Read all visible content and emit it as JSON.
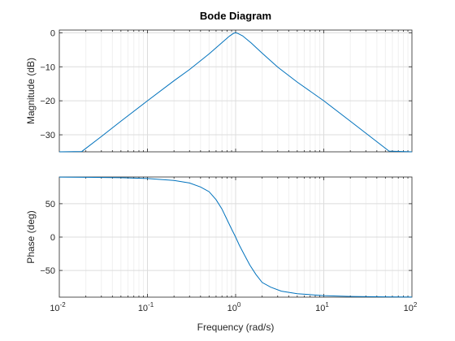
{
  "chart_data": {
    "type": "line",
    "title": "Bode Diagram",
    "xlabel": "Frequency (rad/s)",
    "x_scale": "log",
    "xlim": [
      0.01,
      100
    ],
    "x_ticks": [
      {
        "base": "10",
        "exp": "-2",
        "value": 0.01
      },
      {
        "base": "10",
        "exp": "-1",
        "value": 0.1
      },
      {
        "base": "10",
        "exp": "0",
        "value": 1
      },
      {
        "base": "10",
        "exp": "1",
        "value": 10
      },
      {
        "base": "10",
        "exp": "2",
        "value": 100
      }
    ],
    "grid": true,
    "color": "#0072bd",
    "panels": [
      {
        "name": "magnitude",
        "ylabel": "Magnitude (dB)",
        "ylim": [
          -35,
          0.8
        ],
        "y_ticks": [
          0,
          -10,
          -20,
          -30
        ],
        "y_tick_labels": [
          "0",
          "−10",
          "−20",
          "−30"
        ],
        "points": [
          {
            "x": 0.01,
            "y": -40.0
          },
          {
            "x": 0.018,
            "y": -34.9
          },
          {
            "x": 0.03,
            "y": -30.5
          },
          {
            "x": 0.05,
            "y": -26.0
          },
          {
            "x": 0.1,
            "y": -20.0
          },
          {
            "x": 0.2,
            "y": -14.1
          },
          {
            "x": 0.3,
            "y": -10.8
          },
          {
            "x": 0.5,
            "y": -6.2
          },
          {
            "x": 0.7,
            "y": -2.9
          },
          {
            "x": 0.85,
            "y": -1.0
          },
          {
            "x": 0.95,
            "y": -0.15
          },
          {
            "x": 1.0,
            "y": 0.0
          },
          {
            "x": 1.05,
            "y": -0.15
          },
          {
            "x": 1.2,
            "y": -0.9
          },
          {
            "x": 1.5,
            "y": -3.0
          },
          {
            "x": 2,
            "y": -6.0
          },
          {
            "x": 3,
            "y": -10.1
          },
          {
            "x": 5,
            "y": -14.5
          },
          {
            "x": 10,
            "y": -20.0
          },
          {
            "x": 20,
            "y": -26.0
          },
          {
            "x": 55,
            "y": -34.8
          },
          {
            "x": 100,
            "y": -40.0
          }
        ]
      },
      {
        "name": "phase",
        "ylabel": "Phase (deg)",
        "ylim": [
          -90,
          90
        ],
        "y_ticks": [
          50,
          0,
          -50
        ],
        "y_tick_labels": [
          "50",
          "0",
          "−50"
        ],
        "points": [
          {
            "x": 0.01,
            "y": 89.9
          },
          {
            "x": 0.02,
            "y": 89.5
          },
          {
            "x": 0.05,
            "y": 88.9
          },
          {
            "x": 0.1,
            "y": 87.7
          },
          {
            "x": 0.2,
            "y": 84.8
          },
          {
            "x": 0.3,
            "y": 81.0
          },
          {
            "x": 0.4,
            "y": 75.0
          },
          {
            "x": 0.5,
            "y": 68.0
          },
          {
            "x": 0.6,
            "y": 56.0
          },
          {
            "x": 0.7,
            "y": 42.0
          },
          {
            "x": 0.8,
            "y": 26.0
          },
          {
            "x": 0.9,
            "y": 12.0
          },
          {
            "x": 1.0,
            "y": 0.0
          },
          {
            "x": 1.1,
            "y": -12.0
          },
          {
            "x": 1.25,
            "y": -26.0
          },
          {
            "x": 1.45,
            "y": -42.0
          },
          {
            "x": 1.7,
            "y": -56.0
          },
          {
            "x": 2,
            "y": -68.0
          },
          {
            "x": 2.5,
            "y": -75.0
          },
          {
            "x": 3.3,
            "y": -81.0
          },
          {
            "x": 5,
            "y": -84.8
          },
          {
            "x": 10,
            "y": -87.7
          },
          {
            "x": 20,
            "y": -88.9
          },
          {
            "x": 50,
            "y": -89.5
          },
          {
            "x": 100,
            "y": -89.9
          }
        ]
      }
    ]
  }
}
